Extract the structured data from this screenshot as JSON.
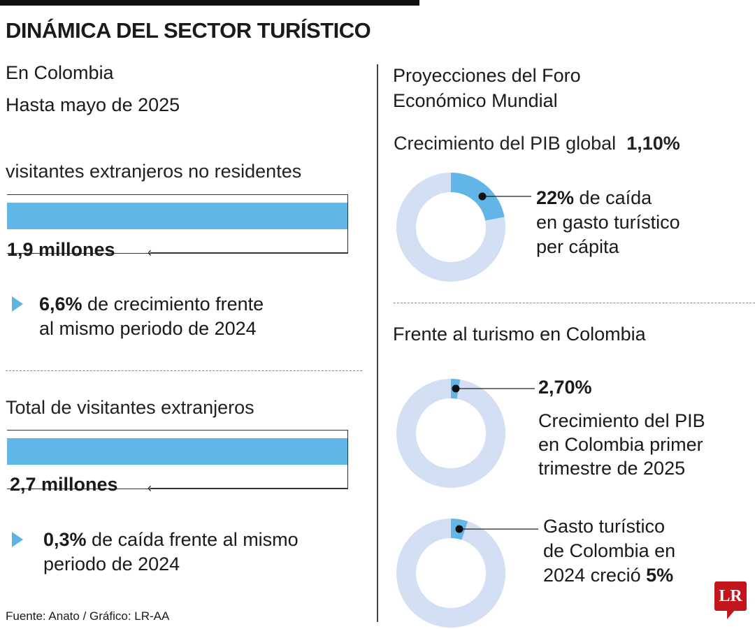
{
  "title": "DINÁMICA DEL SECTOR TURÍSTICO",
  "left": {
    "subtitle_1": "En Colombia",
    "subtitle_2": "Hasta mayo de 2025",
    "blocks": [
      {
        "label": "visitantes extranjeros no residentes",
        "value": "1,9 millones",
        "note_bold": "6,6%",
        "note_1": " de crecimiento frente",
        "note_2": "al mismo periodo de 2024"
      },
      {
        "label": "Total de visitantes extranjeros",
        "value": "2,7 millones",
        "note_bold": "0,3%",
        "note_1": " de caída frente al mismo",
        "note_2": "periodo de 2024"
      }
    ]
  },
  "right": {
    "heading_1": "Proyecciones del Foro",
    "heading_2": "Económico Mundial",
    "pib_label": "Crecimiento del PIB global",
    "pib_value": "1,10%",
    "donut1": {
      "bold": "22%",
      "line1": " de caída",
      "line2": "en gasto turístico",
      "line3": "per cápita"
    },
    "section2": "Frente al turismo en Colombia",
    "donut2": {
      "bold": "2,70%",
      "line1": "Crecimiento del PIB",
      "line2": "en Colombia primer",
      "line3": "trimestre de 2025"
    },
    "donut3": {
      "line1": "Gasto turístico",
      "line2": "de Colombia en",
      "line3": "2024 creció ",
      "bold": "5%"
    }
  },
  "source": "Fuente: Anato / Gráfico: LR-AA",
  "logo": "LR",
  "chart_data": [
    {
      "type": "bar",
      "categories": [
        "visitantes extranjeros no residentes"
      ],
      "values": [
        1.9
      ],
      "unit": "millones"
    },
    {
      "type": "bar",
      "categories": [
        "Total de visitantes extranjeros"
      ],
      "values": [
        2.7
      ],
      "unit": "millones"
    },
    {
      "type": "pie",
      "variant": "donut",
      "values": [
        22,
        78
      ],
      "highlight": 22,
      "colors": {
        "highlight": "#62b6e7",
        "rest": "#d3dff2"
      }
    },
    {
      "type": "pie",
      "variant": "donut",
      "values": [
        2.7,
        97.3
      ],
      "highlight": 2.7,
      "colors": {
        "highlight": "#62b6e7",
        "rest": "#d3dff2"
      }
    },
    {
      "type": "pie",
      "variant": "donut",
      "values": [
        5,
        95
      ],
      "highlight": 5,
      "colors": {
        "highlight": "#62b6e7",
        "rest": "#d3dff2"
      }
    }
  ]
}
